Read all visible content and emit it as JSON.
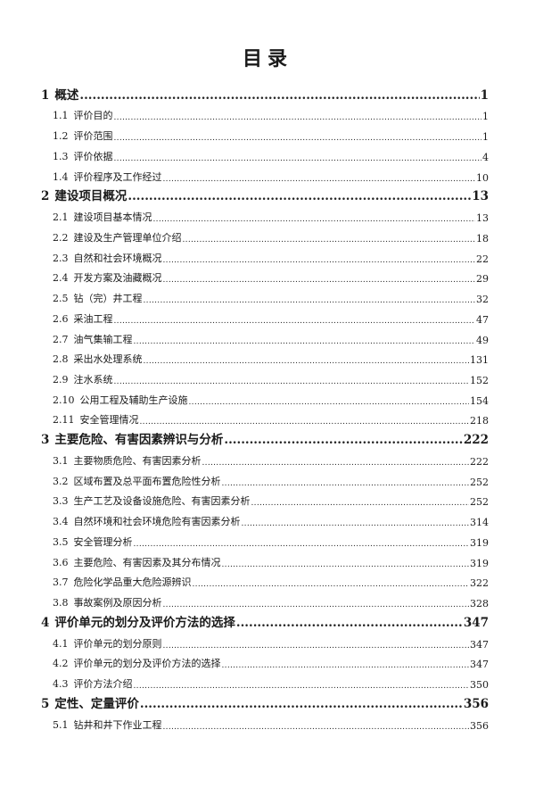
{
  "title": "目录",
  "entries": [
    {
      "num": "1",
      "text": "概述",
      "page": "1",
      "level": 1
    },
    {
      "num": "1.1",
      "text": "评价目的",
      "page": "1",
      "level": 2
    },
    {
      "num": "1.2",
      "text": "评价范围",
      "page": "1",
      "level": 2
    },
    {
      "num": "1.3",
      "text": "评价依据",
      "page": "4",
      "level": 2
    },
    {
      "num": "1.4",
      "text": "评价程序及工作经过",
      "page": "10",
      "level": 2
    },
    {
      "num": "2",
      "text": "建设项目概况",
      "page": "13",
      "level": 1
    },
    {
      "num": "2.1",
      "text": "建设项目基本情况",
      "page": "13",
      "level": 2
    },
    {
      "num": "2.2",
      "text": "建设及生产管理单位介绍",
      "page": "18",
      "level": 2
    },
    {
      "num": "2.3",
      "text": "自然和社会环境概况",
      "page": "22",
      "level": 2
    },
    {
      "num": "2.4",
      "text": "开发方案及油藏概况",
      "page": "29",
      "level": 2
    },
    {
      "num": "2.5",
      "text": "钻（完）井工程",
      "page": "32",
      "level": 2
    },
    {
      "num": "2.6",
      "text": "采油工程",
      "page": "47",
      "level": 2
    },
    {
      "num": "2.7",
      "text": "油气集输工程",
      "page": "49",
      "level": 2
    },
    {
      "num": "2.8",
      "text": "采出水处理系统",
      "page": "131",
      "level": 2
    },
    {
      "num": "2.9",
      "text": "注水系统",
      "page": "152",
      "level": 2
    },
    {
      "num": "2.10",
      "text": "公用工程及辅助生产设施",
      "page": "154",
      "level": 2
    },
    {
      "num": "2.11",
      "text": "安全管理情况",
      "page": "218",
      "level": 2
    },
    {
      "num": "3",
      "text": "主要危险、有害因素辨识与分析",
      "page": "222",
      "level": 1
    },
    {
      "num": "3.1",
      "text": "主要物质危险、有害因素分析",
      "page": "222",
      "level": 2
    },
    {
      "num": "3.2",
      "text": "区域布置及总平面布置危险性分析",
      "page": "252",
      "level": 2
    },
    {
      "num": "3.3",
      "text": "生产工艺及设备设施危险、有害因素分析",
      "page": "252",
      "level": 2
    },
    {
      "num": "3.4",
      "text": "自然环境和社会环境危险有害因素分析",
      "page": "314",
      "level": 2
    },
    {
      "num": "3.5",
      "text": "安全管理分析",
      "page": "319",
      "level": 2
    },
    {
      "num": "3.6",
      "text": "主要危险、有害因素及其分布情况",
      "page": "319",
      "level": 2
    },
    {
      "num": "3.7",
      "text": "危险化学品重大危险源辨识",
      "page": "322",
      "level": 2
    },
    {
      "num": "3.8",
      "text": "事故案例及原因分析",
      "page": "328",
      "level": 2
    },
    {
      "num": "4",
      "text": "评价单元的划分及评价方法的选择",
      "page": "347",
      "level": 1
    },
    {
      "num": "4.1",
      "text": "评价单元的划分原则",
      "page": "347",
      "level": 2
    },
    {
      "num": "4.2",
      "text": "评价单元的划分及评价方法的选择",
      "page": "347",
      "level": 2
    },
    {
      "num": "4.3",
      "text": "评价方法介绍",
      "page": "350",
      "level": 2
    },
    {
      "num": "5",
      "text": "定性、定量评价",
      "page": "356",
      "level": 1
    },
    {
      "num": "5.1",
      "text": "钻井和井下作业工程",
      "page": "356",
      "level": 2
    }
  ]
}
